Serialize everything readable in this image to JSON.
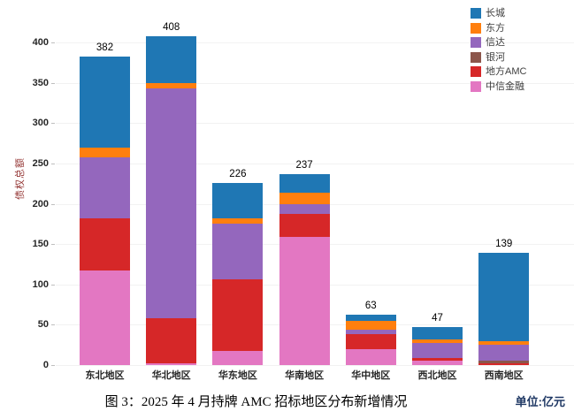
{
  "chart_data": {
    "type": "bar",
    "stacked": true,
    "title": "图 3：2025 年 4 月持牌 AMC 招标地区分布新增情况",
    "unit_label": "单位:亿元",
    "ylabel": "债权总额",
    "categories": [
      "东北地区",
      "华北地区",
      "华东地区",
      "华南地区",
      "华中地区",
      "西北地区",
      "西南地区"
    ],
    "totals": [
      382,
      408,
      226,
      237,
      63,
      47,
      139
    ],
    "series": [
      {
        "name": "中信金融",
        "color": "#e377c2",
        "values": [
          117,
          2,
          18,
          159,
          20,
          5,
          0
        ]
      },
      {
        "name": "地方AMC",
        "color": "#d62728",
        "values": [
          65,
          56,
          88,
          28,
          18,
          4,
          2
        ]
      },
      {
        "name": "银河",
        "color": "#8c564b",
        "values": [
          0,
          0,
          0,
          0,
          0,
          0,
          3
        ]
      },
      {
        "name": "信达",
        "color": "#9467bd",
        "values": [
          75,
          285,
          69,
          12,
          6,
          18,
          20
        ]
      },
      {
        "name": "东方",
        "color": "#ff7f0e",
        "values": [
          13,
          7,
          7,
          15,
          11,
          5,
          5
        ]
      },
      {
        "name": "长城",
        "color": "#1f77b4",
        "values": [
          112,
          58,
          44,
          23,
          8,
          15,
          109
        ]
      }
    ],
    "legend": [
      "长城",
      "东方",
      "信达",
      "银河",
      "地方AMC",
      "中信金融"
    ],
    "legend_position": "top-right",
    "y_ticks": [
      0,
      50,
      100,
      150,
      200,
      250,
      300,
      350,
      400
    ],
    "ylim": [
      0,
      400
    ],
    "grid": true
  },
  "colors": {
    "ylabel_text": "#943634",
    "unit_label_text": "#1f3864",
    "gridline": "#f2f2f2"
  }
}
